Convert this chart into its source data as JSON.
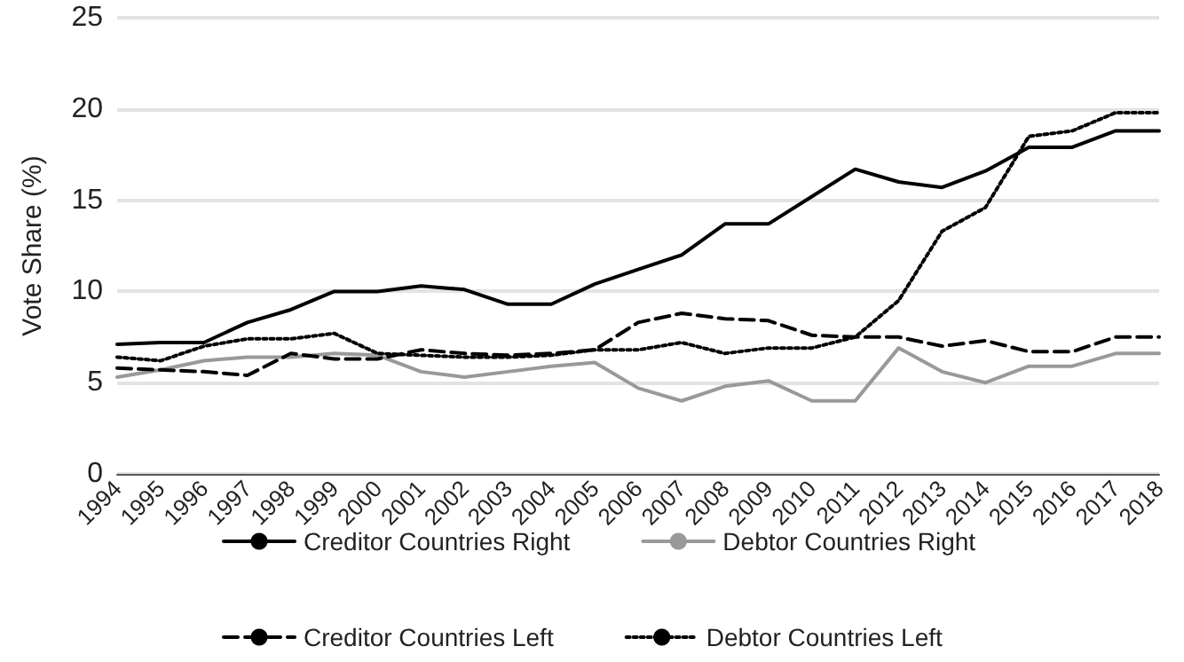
{
  "chart_data": {
    "type": "line",
    "ylabel": "Vote Share (%)",
    "categories": [
      "1994",
      "1995",
      "1996",
      "1997",
      "1998",
      "1999",
      "2000",
      "2001",
      "2002",
      "2003",
      "2004",
      "2005",
      "2006",
      "2007",
      "2008",
      "2009",
      "2010",
      "2011",
      "2012",
      "2013",
      "2014",
      "2015",
      "2016",
      "2017",
      "2018"
    ],
    "series": [
      {
        "name": "Creditor Countries Right",
        "color": "#000000",
        "line_style": "solid",
        "values": [
          7.1,
          7.2,
          7.2,
          8.3,
          9.0,
          10.0,
          10.0,
          10.3,
          10.1,
          9.3,
          9.3,
          10.4,
          11.2,
          12.0,
          13.7,
          13.7,
          15.2,
          16.7,
          16.0,
          15.7,
          16.6,
          17.9,
          17.9,
          18.8,
          18.8
        ]
      },
      {
        "name": "Debtor Countries Right",
        "color": "#999999",
        "line_style": "solid",
        "values": [
          5.3,
          5.7,
          6.2,
          6.4,
          6.4,
          6.6,
          6.5,
          5.6,
          5.3,
          5.6,
          5.9,
          6.1,
          4.7,
          4.0,
          4.8,
          5.1,
          4.0,
          4.0,
          6.9,
          5.6,
          5.0,
          5.9,
          5.9,
          6.6,
          6.6
        ]
      },
      {
        "name": "Creditor Countries Left",
        "color": "#000000",
        "line_style": "dashed",
        "values": [
          5.8,
          5.7,
          5.6,
          5.4,
          6.6,
          6.3,
          6.3,
          6.8,
          6.6,
          6.5,
          6.6,
          6.8,
          8.3,
          8.8,
          8.5,
          8.4,
          7.6,
          7.5,
          7.5,
          7.0,
          7.3,
          6.7,
          6.7,
          7.5,
          7.5
        ]
      },
      {
        "name": "Debtor Countries Left",
        "color": "#000000",
        "line_style": "dotted",
        "values": [
          6.4,
          6.2,
          7.0,
          7.4,
          7.4,
          7.7,
          6.6,
          6.5,
          6.4,
          6.4,
          6.5,
          6.8,
          6.8,
          7.2,
          6.6,
          6.9,
          6.9,
          7.5,
          9.5,
          13.3,
          14.6,
          18.5,
          18.8,
          19.8,
          19.8
        ]
      }
    ],
    "ylim": [
      0,
      25
    ],
    "yticks": [
      0,
      5,
      10,
      15,
      20,
      25
    ],
    "grid": "y",
    "legend": "bottom",
    "marker": "none"
  }
}
